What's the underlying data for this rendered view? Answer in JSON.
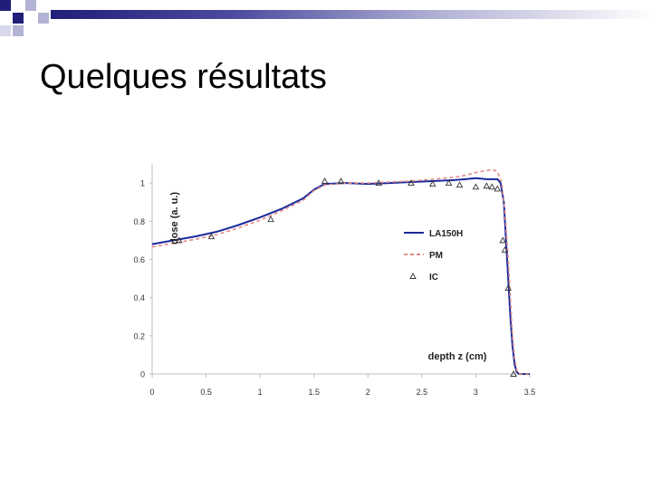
{
  "slide": {
    "title": "Quelques résultats",
    "band_color": "#1f1f7a"
  },
  "chart_data": {
    "type": "line",
    "xlabel": "depth z (cm)",
    "ylabel": "dose (a. u.)",
    "xlim": [
      0,
      3.5
    ],
    "ylim": [
      0,
      1.1
    ],
    "xticks": [
      "0",
      "0.5",
      "1",
      "1.5",
      "2",
      "2.5",
      "3",
      "3.5"
    ],
    "yticks": [
      "0",
      "0.2",
      "0.4",
      "0.6",
      "0.8",
      "1"
    ],
    "grid": false,
    "legend_position": "right",
    "series": [
      {
        "name": "LA150H",
        "style": "solid",
        "color": "#1a2a9c",
        "x": [
          0,
          0.2,
          0.4,
          0.6,
          0.8,
          1.0,
          1.2,
          1.4,
          1.5,
          1.6,
          1.8,
          2.0,
          2.2,
          2.4,
          2.6,
          2.8,
          2.9,
          3.0,
          3.1,
          3.15,
          3.2,
          3.23,
          3.26,
          3.28,
          3.3,
          3.32,
          3.34,
          3.36,
          3.38,
          3.4,
          3.5
        ],
        "y": [
          0.68,
          0.7,
          0.72,
          0.745,
          0.78,
          0.82,
          0.865,
          0.92,
          0.965,
          0.995,
          1.0,
          0.995,
          1.0,
          1.005,
          1.01,
          1.015,
          1.02,
          1.025,
          1.02,
          1.02,
          1.02,
          1.0,
          0.9,
          0.7,
          0.5,
          0.3,
          0.15,
          0.05,
          0.01,
          0.0,
          0.0
        ]
      },
      {
        "name": "PM",
        "style": "dashed",
        "color": "#e08a8a",
        "x": [
          0,
          0.2,
          0.4,
          0.6,
          0.8,
          1.0,
          1.2,
          1.4,
          1.5,
          1.6,
          1.8,
          2.0,
          2.2,
          2.4,
          2.6,
          2.8,
          2.9,
          3.0,
          3.1,
          3.15,
          3.2,
          3.24,
          3.27,
          3.3,
          3.32,
          3.34,
          3.36,
          3.38,
          3.4,
          3.5
        ],
        "y": [
          0.665,
          0.685,
          0.705,
          0.73,
          0.765,
          0.805,
          0.855,
          0.91,
          0.96,
          0.99,
          1.0,
          1.0,
          1.005,
          1.01,
          1.02,
          1.03,
          1.04,
          1.055,
          1.065,
          1.07,
          1.06,
          1.0,
          0.85,
          0.6,
          0.4,
          0.2,
          0.08,
          0.02,
          0.0,
          0.0
        ]
      },
      {
        "name": "IC",
        "style": "markers",
        "color": "#333333",
        "x": [
          0.25,
          0.55,
          1.1,
          1.6,
          1.75,
          2.1,
          2.4,
          2.6,
          2.75,
          2.85,
          3.0,
          3.1,
          3.15,
          3.2,
          3.25,
          3.27,
          3.3,
          3.35
        ],
        "y": [
          0.7,
          0.72,
          0.81,
          1.01,
          1.01,
          1.0,
          1.0,
          0.995,
          1.0,
          0.99,
          0.98,
          0.985,
          0.98,
          0.97,
          0.7,
          0.65,
          0.45,
          0.0
        ]
      }
    ]
  }
}
